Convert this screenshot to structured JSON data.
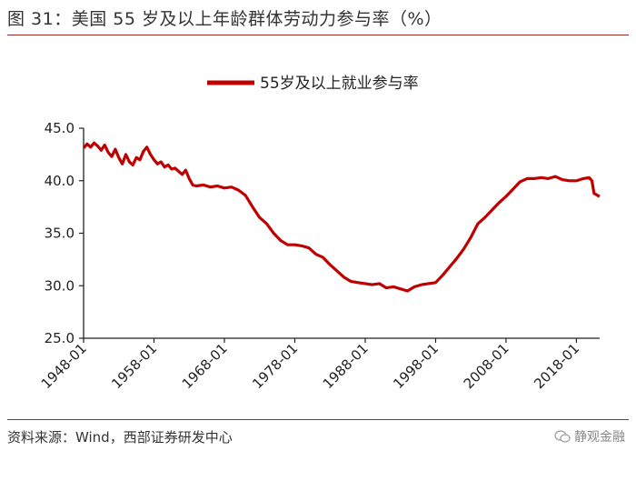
{
  "figure": {
    "title": "图 31：美国 55 岁及以上年龄群体劳动力参与率（%）",
    "source": "资料来源：Wind，西部证券研发中心",
    "watermark": "静观金融"
  },
  "chart_data": {
    "type": "line",
    "title": "",
    "xlabel": "",
    "ylabel": "",
    "ylim": [
      25,
      45
    ],
    "yticks": [
      "45.0",
      "40.0",
      "35.0",
      "30.0",
      "25.0"
    ],
    "yticks_values": [
      45,
      40,
      35,
      30,
      25
    ],
    "xticks": [
      "1948-01",
      "1958-01",
      "1968-01",
      "1978-01",
      "1988-01",
      "1998-01",
      "2008-01",
      "2018-01"
    ],
    "xticks_values": [
      1948,
      1958,
      1968,
      1978,
      1988,
      1998,
      2008,
      2018
    ],
    "xlim": [
      1948,
      2021.3
    ],
    "grid": false,
    "legend_position": "top-center",
    "series": [
      {
        "name": "55岁及以上就业参与率",
        "color": "#c00000",
        "x": [
          1948,
          1948.5,
          1949,
          1949.5,
          1950,
          1950.5,
          1951,
          1951.5,
          1952,
          1952.5,
          1953,
          1953.5,
          1954,
          1954.5,
          1955,
          1955.5,
          1956,
          1956.5,
          1957,
          1957.5,
          1958,
          1958.5,
          1959,
          1959.5,
          1960,
          1960.5,
          1961,
          1961.5,
          1962,
          1962.5,
          1963,
          1963.5,
          1964,
          1965,
          1966,
          1967,
          1968,
          1969,
          1970,
          1971,
          1972,
          1973,
          1974,
          1975,
          1976,
          1977,
          1978,
          1979,
          1980,
          1981,
          1982,
          1983,
          1984,
          1985,
          1986,
          1987,
          1988,
          1989,
          1990,
          1991,
          1992,
          1993,
          1994,
          1995,
          1996,
          1997,
          1998,
          1999,
          2000,
          2001,
          2002,
          2003,
          2004,
          2005,
          2006,
          2007,
          2008,
          2009,
          2010,
          2011,
          2012,
          2013,
          2014,
          2015,
          2016,
          2017,
          2018,
          2019,
          2019.8,
          2020.2,
          2020.5,
          2021,
          2021.3
        ],
        "values": [
          43.1,
          43.5,
          43.2,
          43.6,
          43.3,
          42.9,
          43.4,
          42.7,
          42.3,
          43.0,
          42.2,
          41.6,
          42.5,
          41.8,
          41.5,
          42.2,
          42.0,
          42.8,
          43.2,
          42.5,
          42.0,
          41.6,
          41.8,
          41.3,
          41.5,
          41.1,
          41.2,
          40.9,
          40.6,
          41.0,
          40.2,
          39.6,
          39.5,
          39.6,
          39.4,
          39.5,
          39.3,
          39.4,
          39.1,
          38.6,
          37.5,
          36.5,
          35.9,
          35.0,
          34.3,
          33.9,
          33.9,
          33.8,
          33.6,
          33.0,
          32.7,
          32.0,
          31.4,
          30.8,
          30.4,
          30.3,
          30.2,
          30.1,
          30.2,
          29.8,
          29.9,
          29.7,
          29.5,
          29.9,
          30.1,
          30.2,
          30.3,
          31.0,
          31.8,
          32.6,
          33.5,
          34.6,
          35.9,
          36.5,
          37.2,
          37.9,
          38.5,
          39.2,
          39.9,
          40.2,
          40.2,
          40.3,
          40.2,
          40.4,
          40.1,
          40.0,
          40.0,
          40.2,
          40.3,
          40.0,
          38.8,
          38.6,
          38.5
        ]
      }
    ]
  }
}
